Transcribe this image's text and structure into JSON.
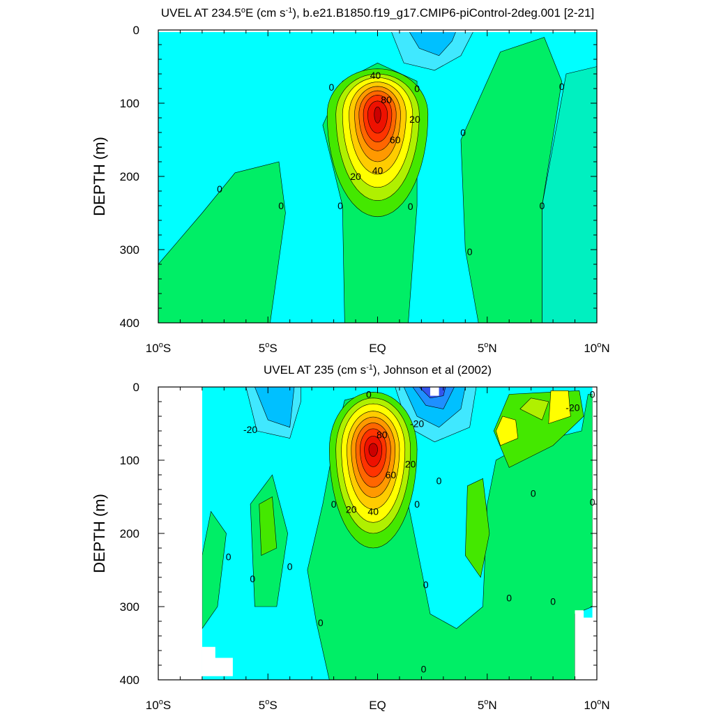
{
  "chart_data": [
    {
      "type": "contour",
      "title": "UVEL AT 234.5",
      "title_deg": "o",
      "title_mid": "E (cm s",
      "title_exp": "-1",
      "title_end": "), b.e21.B1850.f19_g17.CMIP6-piControl-2deg.001 [2-21]",
      "ylabel": "DEPTH (m)",
      "ylim": [
        400,
        0
      ],
      "xlim": [
        -10,
        10
      ],
      "yticks": [
        0,
        100,
        200,
        300,
        400
      ],
      "xticks": [
        {
          "value": -10,
          "num": "10",
          "suffix": "S"
        },
        {
          "value": -5,
          "num": "5",
          "suffix": "S"
        },
        {
          "value": 0,
          "num": "EQ",
          "suffix": ""
        },
        {
          "value": 5,
          "num": "5",
          "suffix": "N"
        },
        {
          "value": 10,
          "num": "10",
          "suffix": "N"
        }
      ],
      "contour_interval_cm_s": 10,
      "core": {
        "lat": 0.0,
        "depth": 115,
        "max_speed": 95
      },
      "contour_labels": [
        {
          "text": "40",
          "lat": -0.1,
          "depth": 62
        },
        {
          "text": "80",
          "lat": 0.4,
          "depth": 95
        },
        {
          "text": "20",
          "lat": 1.7,
          "depth": 122
        },
        {
          "text": "60",
          "lat": 0.8,
          "depth": 150
        },
        {
          "text": "40",
          "lat": 0.0,
          "depth": 192
        },
        {
          "text": "20",
          "lat": -1.0,
          "depth": 200
        },
        {
          "text": "0",
          "lat": -2.1,
          "depth": 78
        },
        {
          "text": "0",
          "lat": 1.8,
          "depth": 80
        },
        {
          "text": "0",
          "lat": 8.4,
          "depth": 77
        },
        {
          "text": "0",
          "lat": 3.9,
          "depth": 140
        },
        {
          "text": "0",
          "lat": -7.2,
          "depth": 217
        },
        {
          "text": "0",
          "lat": -4.4,
          "depth": 240
        },
        {
          "text": "0",
          "lat": -1.7,
          "depth": 240
        },
        {
          "text": "0",
          "lat": 1.5,
          "depth": 241
        },
        {
          "text": "0",
          "lat": 7.5,
          "depth": 240
        },
        {
          "text": "0",
          "lat": 4.2,
          "depth": 303
        }
      ]
    },
    {
      "type": "contour",
      "title": "UVEL AT 235 (cm s",
      "title_exp": "-1",
      "title_end": "), Johnson et al (2002)",
      "ylabel": "DEPTH (m)",
      "ylim": [
        400,
        0
      ],
      "xlim": [
        -10,
        10
      ],
      "yticks": [
        0,
        100,
        200,
        300,
        400
      ],
      "xticks": [
        {
          "value": -10,
          "num": "10",
          "suffix": "S"
        },
        {
          "value": -5,
          "num": "5",
          "suffix": "S"
        },
        {
          "value": 0,
          "num": "EQ",
          "suffix": ""
        },
        {
          "value": 5,
          "num": "5",
          "suffix": "N"
        },
        {
          "value": 10,
          "num": "10",
          "suffix": "N"
        }
      ],
      "data_lat_range": [
        -8,
        9.8
      ],
      "contour_interval_cm_s": 10,
      "core": {
        "lat": -0.2,
        "depth": 85,
        "max_speed": 95
      },
      "contour_labels": [
        {
          "text": "0",
          "lat": -0.4,
          "depth": 10
        },
        {
          "text": "-20",
          "lat": -5.8,
          "depth": 58
        },
        {
          "text": "80",
          "lat": 0.2,
          "depth": 65
        },
        {
          "text": "-20",
          "lat": 1.8,
          "depth": 50
        },
        {
          "text": "20",
          "lat": 1.5,
          "depth": 105
        },
        {
          "text": "60",
          "lat": 0.6,
          "depth": 120
        },
        {
          "text": "40",
          "lat": -0.2,
          "depth": 170
        },
        {
          "text": "20",
          "lat": -1.2,
          "depth": 167
        },
        {
          "text": "0",
          "lat": -2.0,
          "depth": 160
        },
        {
          "text": "0",
          "lat": 1.8,
          "depth": 160
        },
        {
          "text": "0",
          "lat": 2.8,
          "depth": 128
        },
        {
          "text": "-20",
          "lat": 8.9,
          "depth": 28
        },
        {
          "text": "0",
          "lat": 9.8,
          "depth": 10
        },
        {
          "text": "0",
          "lat": 7.1,
          "depth": 145
        },
        {
          "text": "0",
          "lat": 9.8,
          "depth": 157
        },
        {
          "text": "0",
          "lat": -6.8,
          "depth": 232
        },
        {
          "text": "0",
          "lat": -5.7,
          "depth": 262
        },
        {
          "text": "0",
          "lat": -4.0,
          "depth": 245
        },
        {
          "text": "0",
          "lat": 2.2,
          "depth": 270
        },
        {
          "text": "0",
          "lat": -2.6,
          "depth": 322
        },
        {
          "text": "0",
          "lat": 6.0,
          "depth": 288
        },
        {
          "text": "0",
          "lat": 8.0,
          "depth": 293
        },
        {
          "text": "0",
          "lat": 2.1,
          "depth": 385
        }
      ]
    }
  ],
  "colors": {
    "neg40": "#3355ee",
    "neg30": "#1e90ff",
    "neg20": "#00c0ff",
    "neg10": "#40e8ff",
    "zero_neg": "#00ffff",
    "zero_pos": "#00fc96",
    "pos10": "#00ee66",
    "pos20": "#44e800",
    "pos30": "#b0f000",
    "pos40": "#ffff00",
    "pos50": "#ffcc00",
    "pos60": "#ff9900",
    "pos70": "#ff6600",
    "pos80": "#ff3300",
    "pos90": "#ee1100",
    "pos100": "#cc0000"
  }
}
